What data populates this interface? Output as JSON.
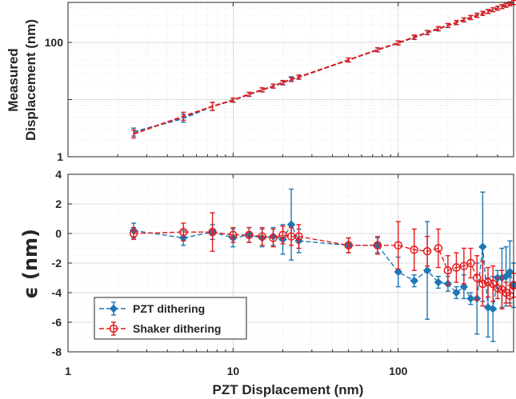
{
  "chart_data": [
    {
      "type": "line",
      "panel": "top",
      "ylabel": [
        "Measured",
        "Displacement (nm)"
      ],
      "xscale": "log",
      "yscale": "log",
      "xlim": [
        1,
        500
      ],
      "ylim": [
        1,
        500
      ],
      "x_ticks": [
        1,
        10,
        100
      ],
      "y_ticks": [
        1,
        100
      ],
      "y_tick_labels": [
        "1",
        "100"
      ],
      "grid": true,
      "series": [
        {
          "color": "#1f77b4",
          "style": "dashed",
          "x": [
            2.5,
            5,
            7.5,
            10,
            12.5,
            15,
            17.5,
            20,
            22.5,
            25,
            50,
            75,
            100,
            125,
            150,
            175,
            200,
            225,
            250,
            275,
            300,
            325,
            350,
            375,
            400,
            425,
            450,
            475,
            500
          ],
          "y": [
            2.7,
            4.7,
            7.6,
            9.7,
            12.3,
            14.7,
            17.2,
            19.5,
            23.1,
            24.5,
            49.2,
            74.2,
            97.4,
            121.8,
            147.5,
            171.8,
            196.6,
            221.1,
            246.4,
            270.6,
            299.1,
            320.0,
            345.0,
            372.0,
            397.0,
            421.5,
            446.4,
            472.5,
            496.5
          ]
        },
        {
          "color": "#e41a1c",
          "style": "dashed",
          "x": [
            2.5,
            5,
            7.5,
            10,
            12.5,
            15,
            17.5,
            20,
            22.5,
            25,
            50,
            75,
            100,
            125,
            150,
            175,
            200,
            225,
            250,
            275,
            300,
            325,
            350,
            375,
            400,
            425,
            450,
            475,
            500
          ],
          "y": [
            2.5,
            5.1,
            7.6,
            9.8,
            12.4,
            14.8,
            17.2,
            19.9,
            22.4,
            24.8,
            49.2,
            74.2,
            98.0,
            123.9,
            148.8,
            174.0,
            197.9,
            222.8,
            247.5,
            273.0,
            296.0,
            322.0,
            347.0,
            372.0,
            396.5,
            421.0,
            446.0,
            471.0,
            496.5
          ]
        }
      ]
    },
    {
      "type": "line",
      "panel": "bottom",
      "xlabel": "PZT Displacement (nm)",
      "ylabel": "ϵ (nm)",
      "xscale": "log",
      "xlim": [
        1,
        500
      ],
      "ylim": [
        -8,
        4
      ],
      "x_ticks": [
        1,
        10,
        100
      ],
      "x_tick_labels": [
        "1",
        "10",
        "100"
      ],
      "y_ticks": [
        -8,
        -6,
        -4,
        -2,
        0,
        2,
        4
      ],
      "y_tick_labels": [
        "-8",
        "-6",
        "-4",
        "-2",
        "0",
        "2",
        "4"
      ],
      "grid": true,
      "legend": {
        "placement": "bottom-left"
      },
      "series": [
        {
          "name": "PZT dithering",
          "color": "#1f77b4",
          "style": "dashed",
          "marker": "diamond",
          "x": [
            2.5,
            5,
            7.5,
            10,
            12.5,
            15,
            17.5,
            20,
            22.5,
            25,
            50,
            75,
            100,
            125,
            150,
            175,
            200,
            225,
            250,
            275,
            300,
            325,
            350,
            375,
            400,
            425,
            450,
            475,
            500
          ],
          "y": [
            0.2,
            -0.3,
            0.1,
            -0.3,
            -0.1,
            -0.3,
            -0.2,
            -0.4,
            0.6,
            -0.5,
            -0.8,
            -0.8,
            -2.6,
            -3.2,
            -2.5,
            -3.3,
            -3.4,
            -4.0,
            -3.6,
            -4.4,
            -4.4,
            -0.9,
            -5.0,
            -5.1,
            -3.0,
            -3.0,
            -2.9,
            -2.6,
            -3.5
          ],
          "err": [
            0.5,
            0.5,
            0.5,
            0.6,
            0.5,
            0.6,
            0.6,
            1.0,
            2.4,
            0.8,
            0.5,
            0.5,
            1.0,
            0.4,
            3.3,
            0.4,
            0.5,
            0.4,
            0.8,
            0.4,
            2.4,
            3.7,
            2.0,
            2.2,
            0.5,
            2.0,
            2.0,
            2.1,
            1.5
          ]
        },
        {
          "name": "Shaker dithering",
          "color": "#e41a1c",
          "style": "dashed",
          "marker": "circle",
          "x": [
            2.5,
            5,
            7.5,
            10,
            12.5,
            15,
            17.5,
            20,
            22.5,
            25,
            50,
            75,
            100,
            125,
            150,
            175,
            200,
            225,
            250,
            275,
            300,
            325,
            350,
            375,
            400,
            425,
            450,
            475,
            500
          ],
          "y": [
            0.0,
            0.1,
            0.1,
            -0.1,
            -0.1,
            -0.2,
            -0.3,
            -0.1,
            -0.2,
            -0.2,
            -0.8,
            -0.8,
            -0.8,
            -1.1,
            -1.2,
            -1.0,
            -2.5,
            -2.3,
            -2.2,
            -2.0,
            -3.0,
            -3.4,
            -3.3,
            -3.4,
            -3.7,
            -3.8,
            -4.0,
            -4.2,
            -3.5
          ],
          "err": [
            0.4,
            0.6,
            1.3,
            0.5,
            0.5,
            0.6,
            0.6,
            0.6,
            0.6,
            0.8,
            0.5,
            0.6,
            1.6,
            1.4,
            1.0,
            1.3,
            1.0,
            1.0,
            1.2,
            1.0,
            1.5,
            1.5,
            1.0,
            1.2,
            0.7,
            1.3,
            0.7,
            0.7,
            0.8
          ]
        }
      ]
    }
  ]
}
